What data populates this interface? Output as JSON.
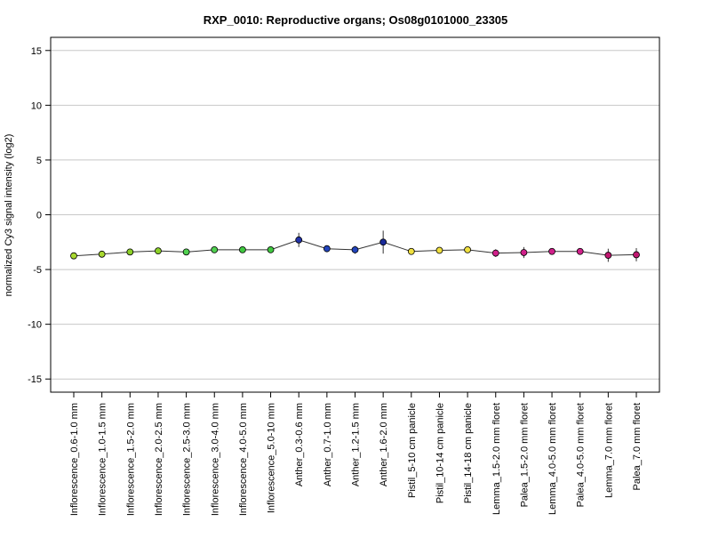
{
  "chart_data": {
    "type": "line",
    "title": "RXP_0010: Reproductive organs; Os08g0101000_23305",
    "xlabel": "",
    "ylabel": "normalized Cy3 signal intensity (log2)",
    "ylim": [
      -16.2,
      16.2
    ],
    "yticks": [
      15,
      10,
      5,
      0,
      -5,
      -10,
      -15
    ],
    "grid": true,
    "categories": [
      "Inflorescence_0.6-1.0 mm",
      "Inflorescence_1.0-1.5 mm",
      "Inflorescence_1.5-2.0 mm",
      "Inflorescence_2.0-2.5 mm",
      "Inflorescence_2.5-3.0 mm",
      "Inflorescence_3.0-4.0 mm",
      "Inflorescence_4.0-5.0 mm",
      "Inflorescence_5.0-10 mm",
      "Anther_0.3-0.6 mm",
      "Anther_0.7-1.0 mm",
      "Anther_1.2-1.5 mm",
      "Anther_1.6-2.0 mm",
      "Pistil_5-10 cm panicle",
      "Pistil_10-14 cm panicle",
      "Pistil_14-18 cm panicle",
      "Lemma_1.5-2.0 mm floret",
      "Palea_1.5-2.0 mm floret",
      "Lemma_4.0-5.0 mm floret",
      "Palea_4.0-5.0 mm floret",
      "Lemma_7.0 mm floret",
      "Palea_7.0 mm floret"
    ],
    "values": [
      -3.75,
      -3.6,
      -3.4,
      -3.3,
      -3.4,
      -3.2,
      -3.2,
      -3.2,
      -2.3,
      -3.1,
      -3.2,
      -2.5,
      -3.35,
      -3.25,
      -3.2,
      -3.5,
      -3.45,
      -3.35,
      -3.35,
      -3.7,
      -3.65
    ],
    "errors": [
      0.15,
      0.15,
      0.2,
      0.15,
      0.15,
      0.15,
      0.15,
      0.15,
      0.65,
      0.2,
      0.35,
      1.05,
      0.2,
      0.2,
      0.15,
      0.35,
      0.5,
      0.2,
      0.15,
      0.6,
      0.6
    ],
    "point_colors": [
      "#a8d830",
      "#a8d830",
      "#8cd028",
      "#8cd028",
      "#50d050",
      "#50d050",
      "#40c840",
      "#40c840",
      "#2233aa",
      "#2244bb",
      "#2244bb",
      "#1a2a99",
      "#f0e040",
      "#f0e040",
      "#f0e040",
      "#d0208a",
      "#d0208a",
      "#d0208a",
      "#d0208a",
      "#c01870",
      "#c01870"
    ],
    "line_color": "#333333"
  }
}
